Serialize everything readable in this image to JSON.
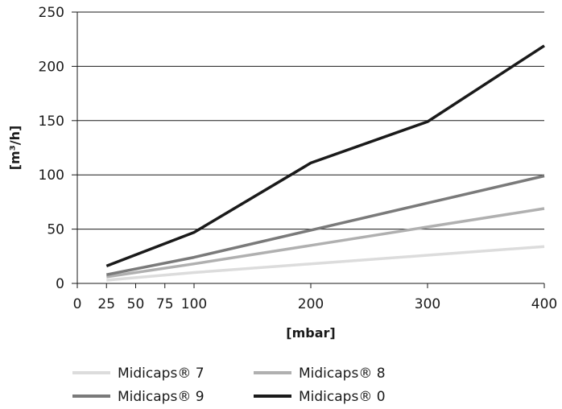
{
  "chart_data": {
    "type": "line",
    "xlabel": "[mbar]",
    "ylabel": "[m³/h]",
    "xlim": [
      0,
      400
    ],
    "ylim": [
      0,
      250
    ],
    "x_ticks": [
      0,
      25,
      50,
      75,
      100,
      200,
      300,
      400
    ],
    "y_ticks": [
      0,
      50,
      100,
      150,
      200,
      250
    ],
    "grid": "horizontal",
    "legend_position": "bottom",
    "series": [
      {
        "name": "Midicaps® 7",
        "color": "#dcdcdc",
        "points": [
          [
            25,
            3
          ],
          [
            100,
            10
          ],
          [
            200,
            18
          ],
          [
            300,
            26
          ],
          [
            400,
            34
          ]
        ]
      },
      {
        "name": "Midicaps® 8",
        "color": "#b0b0b0",
        "points": [
          [
            25,
            6
          ],
          [
            100,
            18
          ],
          [
            200,
            35
          ],
          [
            300,
            52
          ],
          [
            400,
            69
          ]
        ]
      },
      {
        "name": "Midicaps® 9",
        "color": "#7a7a7a",
        "points": [
          [
            25,
            8
          ],
          [
            100,
            24
          ],
          [
            200,
            49
          ],
          [
            300,
            74
          ],
          [
            400,
            99
          ]
        ]
      },
      {
        "name": "Midicaps® 0",
        "color": "#1a1a1a",
        "points": [
          [
            25,
            16
          ],
          [
            100,
            47
          ],
          [
            200,
            111
          ],
          [
            300,
            149
          ],
          [
            400,
            219
          ]
        ]
      }
    ]
  }
}
